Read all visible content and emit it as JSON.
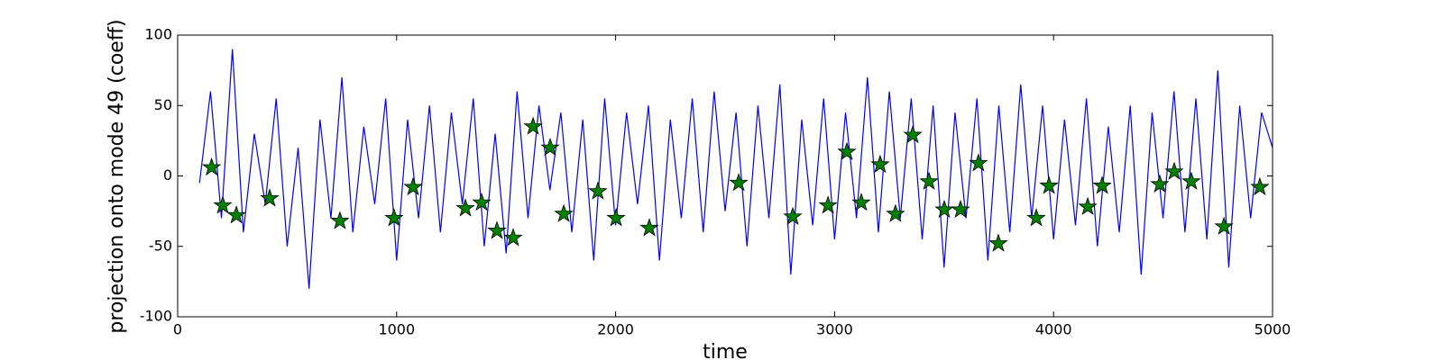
{
  "chart_data": {
    "type": "line",
    "xlabel": "time",
    "ylabel": "projection onto mode 49 (coeff)",
    "xlim": [
      0,
      5000
    ],
    "xticks": [
      0,
      1000,
      2000,
      3000,
      4000,
      5000
    ],
    "ylim": [
      -100,
      100
    ],
    "yticks": [
      -100,
      -50,
      0,
      50,
      100
    ],
    "series": [
      {
        "style": "line",
        "color": "#0000ff",
        "x": [
          100,
          150,
          200,
          250,
          300,
          350,
          400,
          450,
          500,
          550,
          600,
          650,
          700,
          750,
          800,
          850,
          900,
          950,
          1000,
          1050,
          1100,
          1150,
          1200,
          1250,
          1300,
          1350,
          1400,
          1450,
          1500,
          1550,
          1600,
          1650,
          1700,
          1750,
          1800,
          1850,
          1900,
          1950,
          2000,
          2050,
          2100,
          2150,
          2200,
          2250,
          2300,
          2350,
          2400,
          2450,
          2500,
          2550,
          2600,
          2650,
          2700,
          2750,
          2800,
          2850,
          2900,
          2950,
          3000,
          3050,
          3100,
          3150,
          3200,
          3250,
          3300,
          3350,
          3400,
          3450,
          3500,
          3550,
          3600,
          3650,
          3700,
          3750,
          3800,
          3850,
          3900,
          3950,
          4000,
          4050,
          4100,
          4150,
          4200,
          4250,
          4300,
          4350,
          4400,
          4450,
          4500,
          4550,
          4600,
          4650,
          4700,
          4750,
          4800,
          4850,
          4900,
          4950,
          5000
        ],
        "values": [
          -5,
          60,
          -30,
          90,
          -40,
          30,
          -20,
          55,
          -50,
          20,
          -80,
          40,
          -30,
          70,
          -40,
          35,
          -20,
          55,
          -60,
          40,
          -30,
          50,
          -40,
          45,
          -20,
          55,
          -50,
          30,
          -55,
          60,
          -30,
          50,
          -10,
          45,
          -40,
          40,
          -60,
          55,
          -35,
          45,
          -20,
          50,
          -60,
          40,
          -30,
          55,
          -40,
          60,
          -25,
          45,
          -50,
          50,
          -30,
          65,
          -70,
          40,
          -35,
          55,
          -45,
          45,
          -30,
          70,
          -40,
          60,
          -30,
          55,
          -45,
          50,
          -65,
          45,
          -30,
          55,
          -60,
          50,
          -40,
          65,
          -30,
          50,
          -45,
          40,
          -35,
          55,
          -50,
          35,
          -40,
          50,
          -70,
          45,
          -30,
          60,
          -40,
          55,
          -45,
          75,
          -65,
          50,
          -30,
          45,
          20
        ]
      },
      {
        "style": "star",
        "color": "#008000",
        "x": [
          155,
          206,
          268,
          420,
          741,
          988,
          1075,
          1314,
          1388,
          1458,
          1532,
          1623,
          1701,
          1763,
          1919,
          2002,
          2154,
          2562,
          2809,
          2970,
          3056,
          3122,
          3208,
          3278,
          3357,
          3431,
          3501,
          3575,
          3657,
          3748,
          3921,
          3979,
          4156,
          4222,
          4485,
          4551,
          4629,
          4778,
          4942
        ],
        "values": [
          6,
          -21,
          -28,
          -16,
          -32,
          -30,
          -8,
          -23,
          -19,
          -39,
          -44,
          35,
          20,
          -27,
          -11,
          -30,
          -37,
          -5,
          -29,
          -21,
          17,
          -19,
          8,
          -27,
          29,
          -4,
          -24,
          -24,
          9,
          -48,
          -30,
          -7,
          -22,
          -7,
          -6,
          3,
          -4,
          -36,
          -8
        ]
      }
    ]
  }
}
